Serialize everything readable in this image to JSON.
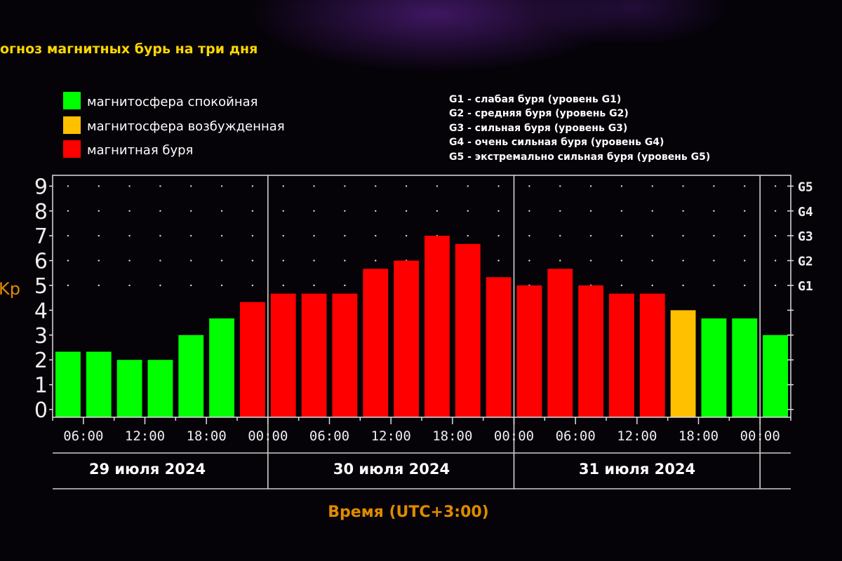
{
  "title": "огноз магнитных бурь на три дня",
  "legend": [
    {
      "label": "магнитосфера спокойная",
      "color": "#00ff00"
    },
    {
      "label": "магнитосфера возбужденная",
      "color": "#ffc000"
    },
    {
      "label": "магнитная буря",
      "color": "#ff0000"
    }
  ],
  "g_legend": [
    "G1 - слабая буря (уровень G1)",
    "G2 - средняя буря (уровень G2)",
    "G3 - сильная буря (уровень G3)",
    "G4 - очень сильная буря (уровень G4)",
    "G5 - экстремально сильная буря (уровень G5)"
  ],
  "chart_data": {
    "type": "bar",
    "ylabel": "Kp",
    "xlabel": "Время (UTC+3:00)",
    "ylim": [
      0,
      9
    ],
    "yticks": [
      "0",
      "1",
      "2",
      "3",
      "4",
      "5",
      "6",
      "7",
      "8",
      "9"
    ],
    "g_ticks": [
      {
        "label": "G1",
        "kp": 5
      },
      {
        "label": "G2",
        "kp": 6
      },
      {
        "label": "G3",
        "kp": 7
      },
      {
        "label": "G4",
        "kp": 8
      },
      {
        "label": "G5",
        "kp": 9
      }
    ],
    "xtick_labels": [
      "06:00",
      "12:00",
      "18:00",
      "00:00",
      "06:00",
      "12:00",
      "18:00",
      "00:00",
      "06:00",
      "12:00",
      "18:00",
      "00:00"
    ],
    "days": [
      "29 июля 2024",
      "30 июля 2024",
      "31 июля 2024"
    ],
    "values": [
      2.33,
      2.33,
      2,
      2,
      3,
      3.67,
      4.33,
      4.67,
      4.67,
      4.67,
      5.67,
      6,
      7,
      6.67,
      5.33,
      5,
      5.67,
      5,
      4.67,
      4.67,
      4,
      3.67,
      3.67,
      3
    ],
    "colors": [
      "#00ff00",
      "#00ff00",
      "#00ff00",
      "#00ff00",
      "#00ff00",
      "#00ff00",
      "#ff0000",
      "#ff0000",
      "#ff0000",
      "#ff0000",
      "#ff0000",
      "#ff0000",
      "#ff0000",
      "#ff0000",
      "#ff0000",
      "#ff0000",
      "#ff0000",
      "#ff0000",
      "#ff0000",
      "#ff0000",
      "#ffc000",
      "#00ff00",
      "#00ff00",
      "#00ff00"
    ]
  },
  "colors": {
    "title": "#ffd700",
    "axis_label": "#e08a00",
    "text": "#ffffff"
  }
}
